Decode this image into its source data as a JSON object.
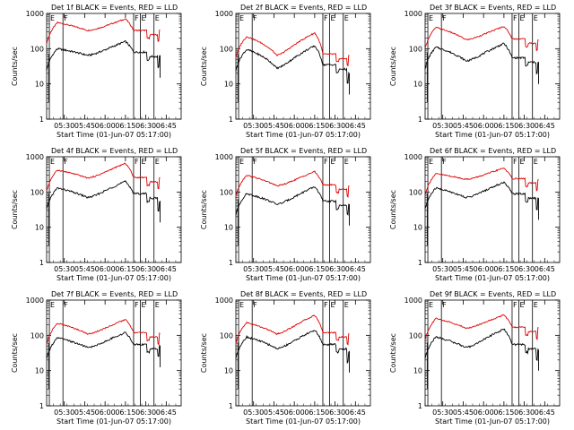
{
  "chart_data": {
    "type": "line",
    "ylabel": "Counts/sec",
    "xlabel": "Start Time (01-Jun-07 05:17:00)",
    "yscale": "log",
    "ylim": [
      1,
      1000
    ],
    "y_ticks": [
      1,
      10,
      100,
      1000
    ],
    "y_tick_labels": [
      "1",
      "10",
      "100",
      "1000"
    ],
    "xlim": [
      "05:17",
      "06:56"
    ],
    "x_ticks": [
      "05:30",
      "05:45",
      "06:00",
      "06:15",
      "06:30",
      "06:45"
    ],
    "series_colors": {
      "events": "#000000",
      "lld": "#e00000"
    },
    "markers": [
      {
        "label": "E",
        "time": "05:19"
      },
      {
        "label": "F",
        "time": "05:29"
      },
      {
        "label": "F",
        "time": "06:21"
      },
      {
        "label": "E",
        "time": "06:26"
      },
      {
        "label": "E",
        "time": "06:36"
      }
    ],
    "panels": [
      {
        "title": "Det 1f BLACK = Events, RED = LLD",
        "events": {
          "start": 100,
          "valley": 65,
          "peak": 160,
          "post": 80,
          "end": 60
        },
        "lld": {
          "start": 550,
          "valley": 330,
          "peak": 700,
          "post": 330,
          "end": 330
        }
      },
      {
        "title": "Det 2f BLACK = Events, RED = LLD",
        "events": {
          "start": 95,
          "valley": 28,
          "peak": 120,
          "post": 35,
          "end": 20
        },
        "lld": {
          "start": 220,
          "valley": 65,
          "peak": 280,
          "post": 70,
          "end": 65
        }
      },
      {
        "title": "Det 3f BLACK = Events, RED = LLD",
        "events": {
          "start": 110,
          "valley": 45,
          "peak": 140,
          "post": 55,
          "end": 40
        },
        "lld": {
          "start": 400,
          "valley": 180,
          "peak": 430,
          "post": 190,
          "end": 180
        }
      },
      {
        "title": "Det 4f BLACK = Events, RED = LLD",
        "events": {
          "start": 130,
          "valley": 70,
          "peak": 200,
          "post": 90,
          "end": 55
        },
        "lld": {
          "start": 420,
          "valley": 250,
          "peak": 650,
          "post": 260,
          "end": 250
        }
      },
      {
        "title": "Det 5f BLACK = Events, RED = LLD",
        "events": {
          "start": 90,
          "valley": 45,
          "peak": 140,
          "post": 55,
          "end": 45
        },
        "lld": {
          "start": 300,
          "valley": 150,
          "peak": 380,
          "post": 160,
          "end": 150
        }
      },
      {
        "title": "Det 6f BLACK = Events, RED = LLD",
        "events": {
          "start": 130,
          "valley": 70,
          "peak": 190,
          "post": 90,
          "end": 65
        },
        "lld": {
          "start": 330,
          "valley": 230,
          "peak": 480,
          "post": 240,
          "end": 220
        }
      },
      {
        "title": "Det 7f BLACK = Events, RED = LLD",
        "events": {
          "start": 85,
          "valley": 45,
          "peak": 120,
          "post": 55,
          "end": 50
        },
        "lld": {
          "start": 220,
          "valley": 110,
          "peak": 280,
          "post": 120,
          "end": 115
        }
      },
      {
        "title": "Det 8f BLACK = Events, RED = LLD",
        "events": {
          "start": 90,
          "valley": 42,
          "peak": 140,
          "post": 55,
          "end": 35
        },
        "lld": {
          "start": 230,
          "valley": 110,
          "peak": 370,
          "post": 120,
          "end": 110
        }
      },
      {
        "title": "Det 9f BLACK = Events, RED = LLD",
        "events": {
          "start": 90,
          "valley": 45,
          "peak": 150,
          "post": 55,
          "end": 40
        },
        "lld": {
          "start": 300,
          "valley": 160,
          "peak": 380,
          "post": 170,
          "end": 160
        }
      }
    ]
  }
}
